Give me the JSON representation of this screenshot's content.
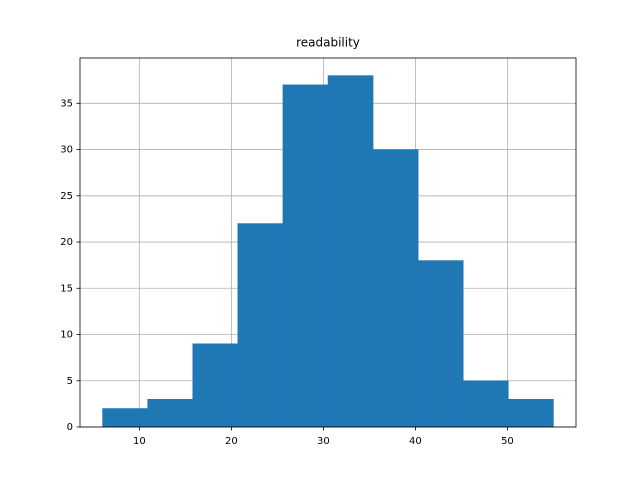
{
  "chart_data": {
    "type": "histogram",
    "title": "readability",
    "bins": [
      6.0,
      10.9,
      15.8,
      20.7,
      25.6,
      30.5,
      35.4,
      40.3,
      45.2,
      50.1,
      55.0
    ],
    "counts": [
      2,
      3,
      9,
      22,
      37,
      38,
      30,
      18,
      5,
      3
    ],
    "color": "#1f77b4",
    "xlim": [
      3.55,
      57.45
    ],
    "xticks": [
      10,
      20,
      30,
      40,
      50
    ],
    "ylim": [
      0,
      39.9
    ],
    "yticks": [
      0,
      5,
      10,
      15,
      20,
      25,
      30,
      35
    ],
    "grid": true
  }
}
